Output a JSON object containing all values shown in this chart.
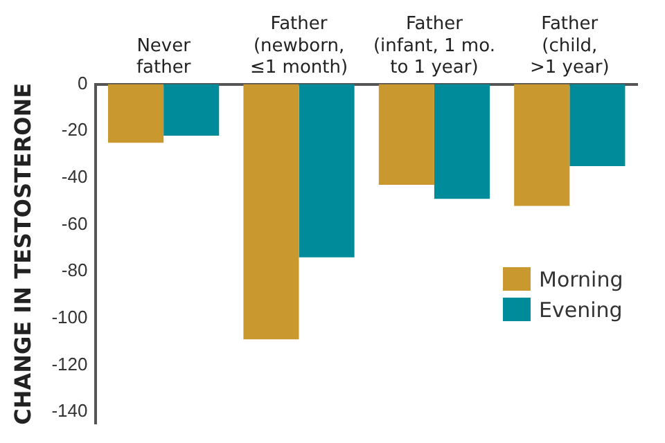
{
  "chart_data": {
    "type": "bar",
    "ylabel": "CHANGE IN TESTOSTERONE",
    "categories": [
      "Never\nfather",
      "Father\n(newborn,\n≤1 month)",
      "Father\n(infant, 1 mo.\nto 1 year)",
      "Father\n(child,\n>1 year)"
    ],
    "series": [
      {
        "name": "Morning",
        "color": "#c9982f",
        "values": [
          -25,
          -109,
          -43,
          -52
        ]
      },
      {
        "name": "Evening",
        "color": "#008b9a",
        "values": [
          -22,
          -74,
          -49,
          -35
        ]
      }
    ],
    "ylim": [
      -145,
      0
    ],
    "yticks": [
      0,
      -20,
      -40,
      -60,
      -80,
      -100,
      -120,
      -140
    ],
    "grid": false,
    "legend": "bottom right"
  }
}
